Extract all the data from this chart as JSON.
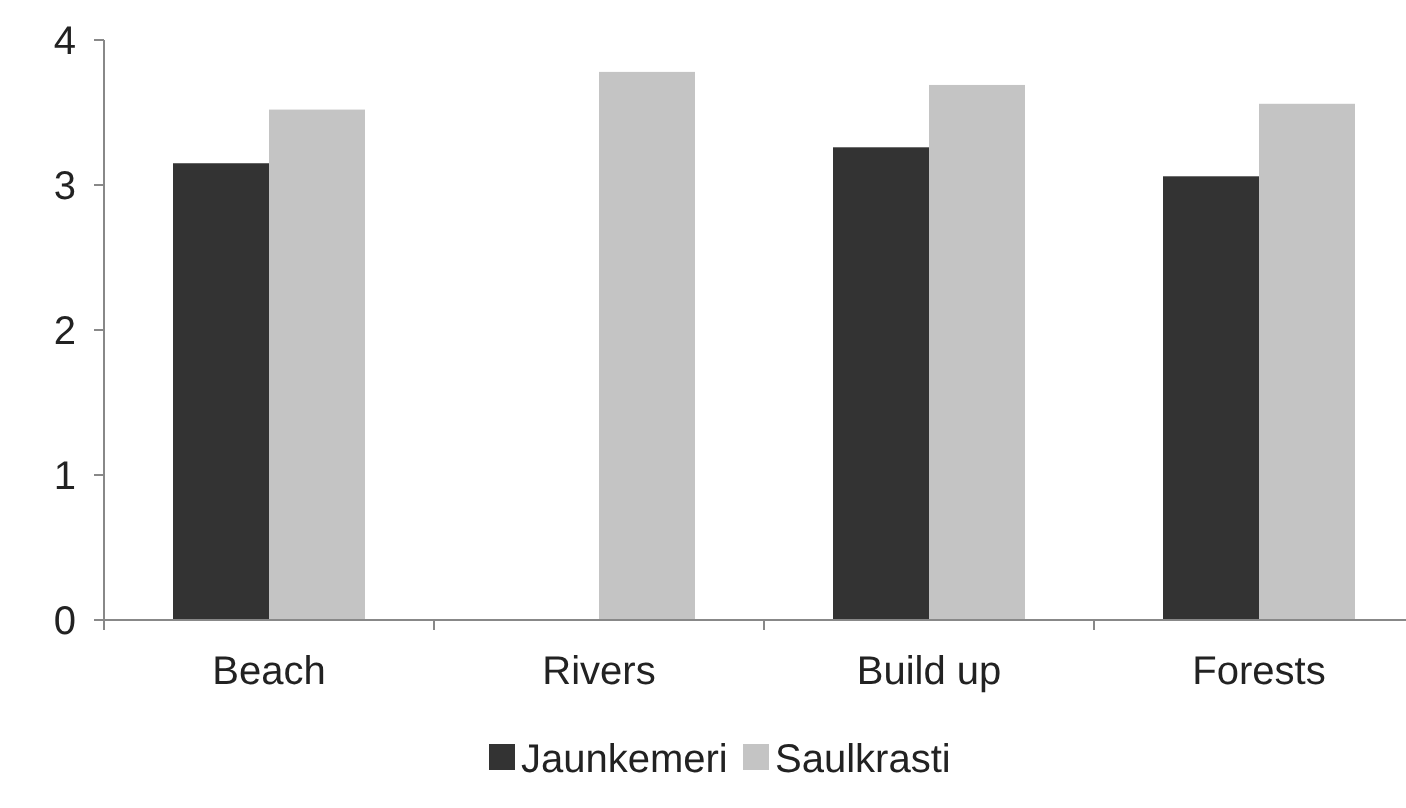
{
  "chart_data": {
    "type": "bar",
    "categories": [
      "Beach",
      "Rivers",
      "Build up",
      "Forests"
    ],
    "series": [
      {
        "name": "Jaunkemeri",
        "color": "#333333",
        "values": [
          3.15,
          null,
          3.26,
          3.06
        ]
      },
      {
        "name": "Saulkrasti",
        "color": "#c4c4c4",
        "values": [
          3.52,
          3.78,
          3.69,
          3.56
        ]
      }
    ],
    "ylim": [
      0,
      4
    ],
    "yticks": [
      0,
      1,
      2,
      3,
      4
    ],
    "grid": false,
    "legend": "bottom"
  }
}
